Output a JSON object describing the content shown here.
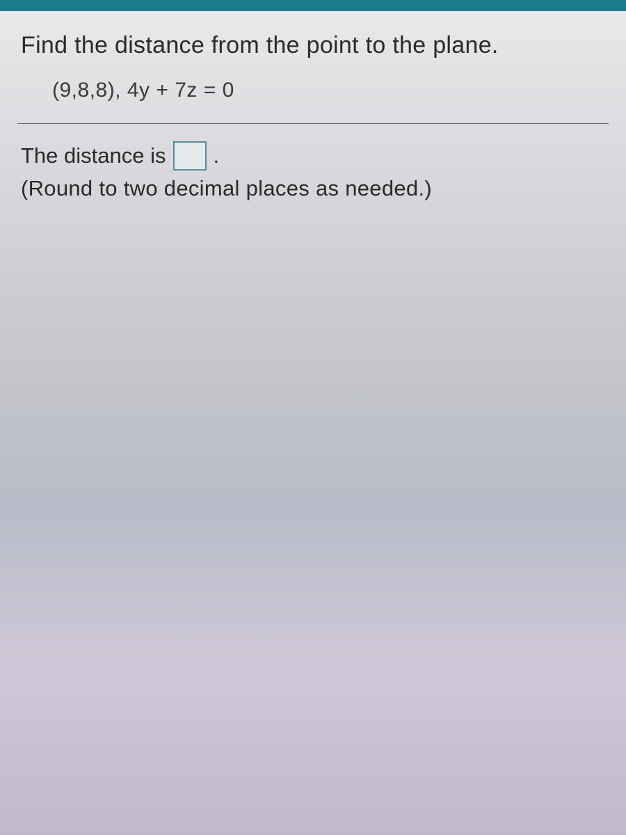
{
  "question": {
    "prompt": "Find the distance from the point to the plane.",
    "given": "(9,8,8), 4y + 7z = 0"
  },
  "answer": {
    "label_before": "The distance is",
    "input_value": "",
    "period": ".",
    "instruction": "(Round to two decimal places as needed.)"
  },
  "colors": {
    "titlebar": "#1a7a8a",
    "text": "#2a2a2a",
    "input_border": "#5a8aa0",
    "divider": "#6a6a6a"
  }
}
